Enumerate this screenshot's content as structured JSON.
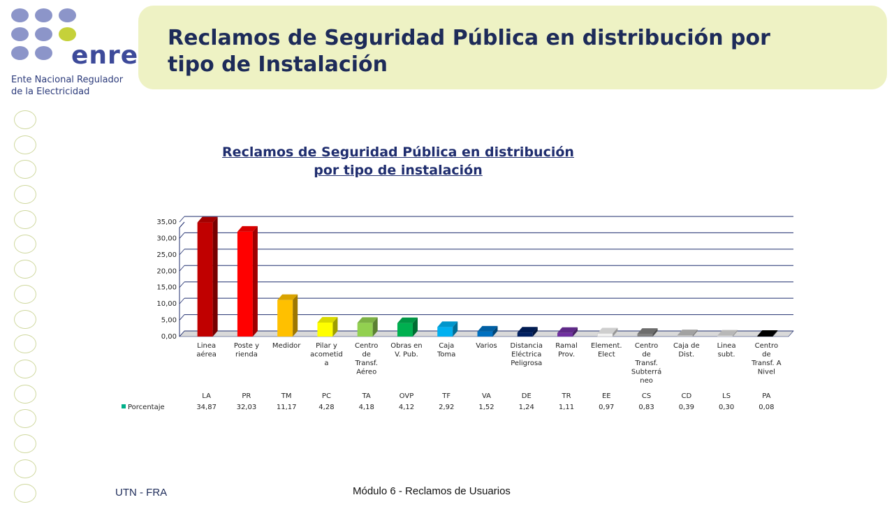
{
  "logo": {
    "brand": "enre",
    "subtitle_line1": "Ente Nacional Regulador",
    "subtitle_line2": "de la Electricidad",
    "dot_color": "#8c95c9",
    "accent_dot_color": "#c5d13a"
  },
  "header": {
    "title_line1": "Reclamos de Seguridad Pública en distribución por",
    "title_line2": "tipo de Instalación"
  },
  "footer": {
    "left": "UTN - FRA",
    "center": "Módulo 6  - Reclamos de Usuarios"
  },
  "chart_data": {
    "type": "bar",
    "title_line1": "Reclamos de Seguridad Pública en distribución",
    "title_line2": "por tipo de instalación",
    "ylim": [
      0,
      35
    ],
    "yticks": [
      "0,00",
      "5,00",
      "10,00",
      "15,00",
      "20,00",
      "25,00",
      "30,00",
      "35,00"
    ],
    "grid": true,
    "categories": [
      [
        "Linea",
        "aérea"
      ],
      [
        "Poste y",
        "rienda"
      ],
      [
        "Medidor"
      ],
      [
        "Pilar y",
        "acometid",
        "a"
      ],
      [
        "Centro",
        "de",
        "Transf.",
        "Aéreo"
      ],
      [
        "Obras en",
        "V. Pub."
      ],
      [
        "Caja",
        "Toma"
      ],
      [
        "Varios"
      ],
      [
        "Distancia",
        "Eléctrica",
        "Peligrosa"
      ],
      [
        "Ramal",
        "Prov."
      ],
      [
        "Element.",
        "Elect"
      ],
      [
        "Centro",
        "de",
        "Transf.",
        "Subterrá",
        "neo"
      ],
      [
        "Caja de",
        "Dist."
      ],
      [
        "Linea",
        "subt."
      ],
      [
        "Centro",
        "de",
        "Transf. A",
        "Nivel"
      ]
    ],
    "codes": [
      "LA",
      "PR",
      "TM",
      "PC",
      "TA",
      "OVP",
      "TF",
      "VA",
      "DE",
      "TR",
      "EE",
      "CS",
      "CD",
      "LS",
      "PA"
    ],
    "value_labels": [
      "34,87",
      "32,03",
      "11,17",
      "4,28",
      "4,18",
      "4,12",
      "2,92",
      "1,52",
      "1,24",
      "1,11",
      "0,97",
      "0,83",
      "0,39",
      "0,30",
      "0,08"
    ],
    "values": [
      34.87,
      32.03,
      11.17,
      4.28,
      4.18,
      4.12,
      2.92,
      1.52,
      1.24,
      1.11,
      0.97,
      0.83,
      0.39,
      0.3,
      0.08
    ],
    "colors": [
      "#c00000",
      "#ff0000",
      "#ffc000",
      "#ffff00",
      "#92d050",
      "#00b050",
      "#00b0f0",
      "#0070c0",
      "#002060",
      "#7030a0",
      "#f2f2f2",
      "#808080",
      "#bfbfbf",
      "#d9d9d9",
      "#000000"
    ],
    "series": [
      {
        "name": "Porcentaje",
        "color": "#00b08a"
      }
    ]
  }
}
